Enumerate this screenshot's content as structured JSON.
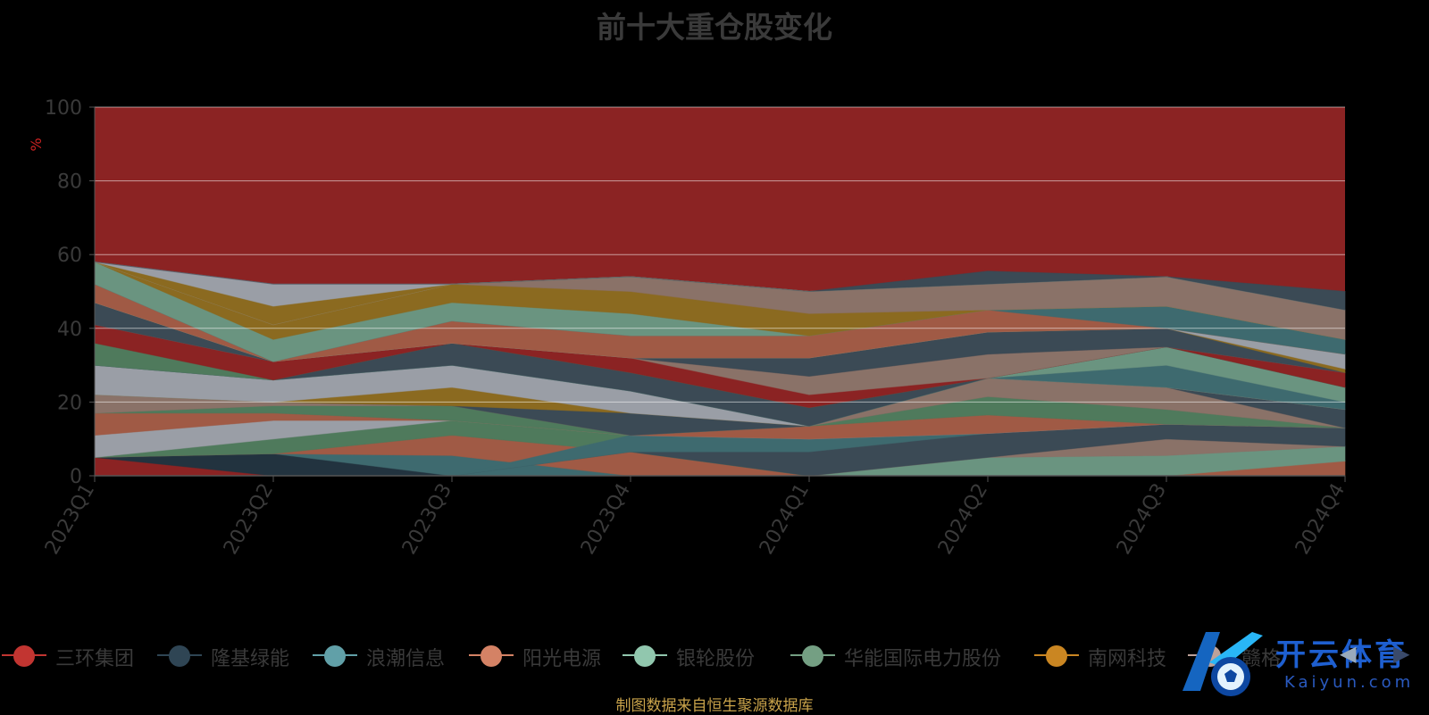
{
  "chart_data": {
    "type": "area",
    "title": "前十大重仓股变化",
    "ylabel": "%",
    "ylim": [
      0,
      100
    ],
    "yticks": [
      0,
      20,
      40,
      60,
      80,
      100
    ],
    "grid": true,
    "legend_position": "bottom",
    "categories": [
      "2023Q1",
      "2023Q2",
      "2023Q3",
      "2023Q4",
      "2024Q1",
      "2024Q2",
      "2024Q3",
      "2024Q4"
    ],
    "background_color": "#8b2323",
    "layers": [
      {
        "color": "#8b2323",
        "lower": [
          0,
          0,
          0,
          0,
          0,
          0,
          0,
          0
        ],
        "upper": [
          5,
          0,
          0,
          0,
          0,
          0,
          0,
          0
        ]
      },
      {
        "color": "#22333f",
        "lower": [
          5,
          0,
          0,
          0,
          0,
          0,
          0,
          0
        ],
        "upper": [
          5,
          6,
          0,
          0,
          0,
          0,
          0,
          0
        ]
      },
      {
        "color": "#3e6a6f",
        "lower": [
          5,
          6,
          0,
          0,
          0,
          0,
          0,
          0
        ],
        "upper": [
          5,
          6,
          5.5,
          0,
          0,
          0,
          0,
          0
        ]
      },
      {
        "color": "#a05a45",
        "lower": [
          0,
          0,
          0,
          0,
          0,
          0,
          0,
          0
        ],
        "upper": [
          0,
          0,
          0,
          0,
          0,
          0,
          0,
          4
        ]
      },
      {
        "color": "#6a9480",
        "lower": [
          0,
          0,
          0,
          0,
          0,
          0,
          0,
          4
        ],
        "upper": [
          0,
          0,
          0,
          0,
          0,
          5,
          5.5,
          8
        ]
      },
      {
        "color": "#a05a45",
        "lower": [
          5,
          6,
          5.5,
          0,
          0,
          0,
          0,
          0
        ],
        "upper": [
          5,
          6,
          11,
          6.5,
          0,
          0,
          0,
          0
        ]
      },
      {
        "color": "#4f7a5c",
        "lower": [
          5,
          6,
          11,
          6.5,
          0,
          0,
          0,
          0
        ],
        "upper": [
          5,
          10,
          15,
          11,
          0,
          0,
          0,
          0
        ]
      },
      {
        "color": "#8a7268",
        "lower": [
          0,
          0,
          0,
          0,
          0,
          5,
          5.5,
          8
        ],
        "upper": [
          0,
          0,
          0,
          0,
          0,
          5,
          10,
          8
        ]
      },
      {
        "color": "#3b4a55",
        "lower": [
          0,
          0,
          0,
          6.5,
          0,
          5,
          10,
          8
        ],
        "upper": [
          0,
          0,
          0,
          6.5,
          6.5,
          11.5,
          14,
          13
        ]
      },
      {
        "color": "#3e6a6f",
        "lower": [
          0,
          0,
          0,
          6.5,
          6.5,
          11.5,
          14,
          13
        ],
        "upper": [
          0,
          0,
          0,
          11,
          10,
          11.5,
          14,
          13
        ]
      },
      {
        "color": "#9a9ea6",
        "lower": [
          5,
          10,
          15,
          11,
          10,
          11.5,
          14,
          13
        ],
        "upper": [
          11,
          15,
          15,
          11,
          10,
          11.5,
          14,
          13
        ]
      },
      {
        "color": "#a05a45",
        "lower": [
          11,
          15,
          15,
          11,
          10,
          11.5,
          14,
          13
        ],
        "upper": [
          17,
          17,
          15,
          11,
          13.5,
          16.5,
          14,
          13
        ]
      },
      {
        "color": "#4f7a5c",
        "lower": [
          17,
          17,
          15,
          11,
          13.5,
          16.5,
          14,
          13
        ],
        "upper": [
          17,
          19,
          19,
          11,
          13.5,
          21.5,
          18,
          13
        ]
      },
      {
        "color": "#8a7268",
        "lower": [
          17,
          19,
          19,
          11,
          13.5,
          21.5,
          18,
          13
        ],
        "upper": [
          22,
          20,
          19,
          11,
          13.5,
          26.5,
          24,
          13
        ]
      },
      {
        "color": "#3b4a55",
        "lower": [
          22,
          20,
          19,
          11,
          13.5,
          26.5,
          24,
          13
        ],
        "upper": [
          22,
          20,
          19,
          17,
          13.5,
          26.5,
          24,
          18
        ]
      },
      {
        "color": "#8b6a20",
        "lower": [
          22,
          20,
          19,
          17,
          13.5,
          26.5,
          24,
          18
        ],
        "upper": [
          22,
          20,
          24,
          17,
          13.5,
          26.5,
          24,
          18
        ]
      },
      {
        "color": "#9a9ea6",
        "lower": [
          22,
          20,
          24,
          17,
          13.5,
          26.5,
          24,
          18
        ],
        "upper": [
          30,
          26,
          30,
          23,
          13.5,
          26.5,
          24,
          18
        ]
      },
      {
        "color": "#3e6a6f",
        "lower": [
          30,
          26,
          30,
          23,
          13.5,
          26.5,
          24,
          18
        ],
        "upper": [
          30,
          26,
          30,
          23,
          13.5,
          26.5,
          30,
          20
        ]
      },
      {
        "color": "#6a9480",
        "lower": [
          30,
          26,
          30,
          23,
          13.5,
          26.5,
          30,
          20
        ],
        "upper": [
          30,
          26,
          30,
          23,
          13.5,
          26.5,
          35,
          24
        ]
      },
      {
        "color": "#3b4a55",
        "lower": [
          30,
          26,
          30,
          23,
          13.5,
          26.5,
          35,
          24
        ],
        "upper": [
          30,
          26,
          36,
          28,
          18.5,
          26.5,
          35,
          24
        ]
      },
      {
        "color": "#4f7a5c",
        "lower": [
          30,
          26,
          36,
          28,
          18.5,
          26.5,
          35,
          24
        ],
        "upper": [
          36,
          26,
          36,
          28,
          18.5,
          26.5,
          35,
          24
        ]
      },
      {
        "color": "#8b2323",
        "lower": [
          36,
          26,
          36,
          28,
          18.5,
          26.5,
          35,
          24
        ],
        "upper": [
          41,
          31,
          36,
          32,
          22,
          26.5,
          35,
          28
        ]
      },
      {
        "color": "#8a7268",
        "lower": [
          41,
          31,
          36,
          32,
          22,
          26.5,
          35,
          28
        ],
        "upper": [
          41,
          31,
          36,
          32,
          27,
          33,
          35,
          28
        ]
      },
      {
        "color": "#3b4a55",
        "lower": [
          41,
          31,
          36,
          32,
          27,
          33,
          35,
          28
        ],
        "upper": [
          47,
          31,
          36,
          32,
          32,
          39,
          40,
          28
        ]
      },
      {
        "color": "#8b6a20",
        "lower": [
          47,
          31,
          36,
          32,
          32,
          39,
          40,
          28
        ],
        "upper": [
          47,
          31,
          36,
          32,
          32,
          39,
          40,
          29
        ]
      },
      {
        "color": "#9a9ea6",
        "lower": [
          47,
          31,
          36,
          32,
          32,
          39,
          40,
          29
        ],
        "upper": [
          47,
          31,
          36,
          32,
          32,
          39,
          40,
          33
        ]
      },
      {
        "color": "#a05a45",
        "lower": [
          47,
          31,
          36,
          32,
          32,
          39,
          40,
          33
        ],
        "upper": [
          52,
          31,
          42,
          38,
          38,
          45,
          40,
          33
        ]
      },
      {
        "color": "#3e6a6f",
        "lower": [
          52,
          31,
          42,
          38,
          38,
          45,
          40,
          33
        ],
        "upper": [
          52,
          31,
          42,
          38,
          38,
          45,
          46,
          37
        ]
      },
      {
        "color": "#6a9480",
        "lower": [
          52,
          31,
          42,
          38,
          38,
          45,
          46,
          37
        ],
        "upper": [
          58,
          37,
          47,
          44,
          38,
          45,
          46,
          37
        ]
      },
      {
        "color": "#8b6a20",
        "lower": [
          58,
          37,
          47,
          44,
          38,
          45,
          46,
          37
        ],
        "upper": [
          58,
          41,
          52,
          50,
          44,
          45,
          46,
          37
        ]
      },
      {
        "color": "#8a7268",
        "lower": [
          58,
          41,
          52,
          50,
          44,
          45,
          46,
          37
        ],
        "upper": [
          58,
          41,
          52,
          54,
          50,
          52,
          54,
          45
        ]
      },
      {
        "color": "#9a9ea6",
        "lower": [
          58,
          41,
          52,
          54,
          50,
          52,
          54,
          45
        ],
        "upper": [
          58,
          46,
          52,
          54,
          50,
          52,
          54,
          45
        ]
      },
      {
        "color": "#8b6a20",
        "lower": [
          58,
          41,
          52,
          54,
          50,
          52,
          54,
          45
        ],
        "upper": [
          58,
          46,
          52,
          54,
          50,
          52,
          54,
          45
        ]
      },
      {
        "color": "#9a9ea6",
        "lower": [
          58,
          46,
          52,
          54,
          50,
          52,
          54,
          45
        ],
        "upper": [
          58,
          52,
          52,
          54,
          50,
          52,
          54,
          45
        ]
      },
      {
        "color": "#3b4a55",
        "lower": [
          58,
          52,
          52,
          54,
          50,
          52,
          54,
          45
        ],
        "upper": [
          58,
          52,
          52,
          54,
          50,
          55.5,
          54,
          50
        ]
      }
    ],
    "legend": [
      {
        "name": "三环集团",
        "color": "#c23531"
      },
      {
        "name": "隆基绿能",
        "color": "#2f4554"
      },
      {
        "name": "浪潮信息",
        "color": "#61a0a8"
      },
      {
        "name": "阳光电源",
        "color": "#d48265"
      },
      {
        "name": "银轮股份",
        "color": "#91c7ae"
      },
      {
        "name": "华能国际电力股份",
        "color": "#749f83"
      },
      {
        "name": "南网科技",
        "color": "#ca8622"
      },
      {
        "name": "赣格",
        "color": "#bda29a"
      }
    ]
  },
  "source_note": "制图数据来自恒生聚源数据库",
  "watermark": {
    "text": "开云体育",
    "sub": "Kaiyun.com"
  }
}
